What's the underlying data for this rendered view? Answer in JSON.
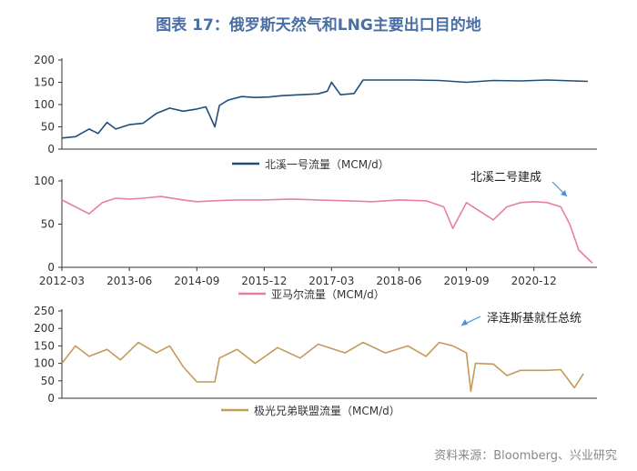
{
  "title": "图表 17：俄罗斯天然气和LNG主要出口目的地",
  "source": "资料来源：Bloomberg、兴业研究",
  "chart_data": [
    {
      "type": "line",
      "series": [
        {
          "name": "北溪一号流量（MCM/d）",
          "color": "#1f4e79",
          "points": [
            [
              "2012-03-01",
              25
            ],
            [
              "2012-06-01",
              28
            ],
            [
              "2012-09-01",
              45
            ],
            [
              "2012-11-01",
              35
            ],
            [
              "2013-01-01",
              60
            ],
            [
              "2013-03-01",
              45
            ],
            [
              "2013-06-01",
              55
            ],
            [
              "2013-09-01",
              58
            ],
            [
              "2013-12-01",
              80
            ],
            [
              "2014-03-01",
              92
            ],
            [
              "2014-06-01",
              85
            ],
            [
              "2014-09-01",
              90
            ],
            [
              "2014-11-01",
              95
            ],
            [
              "2015-01-01",
              50
            ],
            [
              "2015-02-01",
              98
            ],
            [
              "2015-04-01",
              110
            ],
            [
              "2015-07-01",
              118
            ],
            [
              "2015-10-01",
              116
            ],
            [
              "2016-01-01",
              117
            ],
            [
              "2016-04-01",
              120
            ],
            [
              "2016-08-01",
              122
            ],
            [
              "2016-12-01",
              124
            ],
            [
              "2017-02-01",
              130
            ],
            [
              "2017-03-01",
              150
            ],
            [
              "2017-05-01",
              122
            ],
            [
              "2017-08-01",
              125
            ],
            [
              "2017-10-01",
              155
            ],
            [
              "2018-03-01",
              155
            ],
            [
              "2018-09-01",
              155
            ],
            [
              "2019-03-01",
              154
            ],
            [
              "2019-09-01",
              150
            ],
            [
              "2020-03-01",
              154
            ],
            [
              "2020-09-01",
              153
            ],
            [
              "2021-03-01",
              155
            ],
            [
              "2021-09-01",
              153
            ],
            [
              "2021-12-01",
              152
            ]
          ]
        }
      ],
      "ylim": [
        0,
        200
      ],
      "yticks": [
        0,
        50,
        100,
        150,
        200
      ]
    },
    {
      "type": "line",
      "series": [
        {
          "name": "亚马尔流量（MCM/d）",
          "color": "#e880a0",
          "points": [
            [
              "2012-03-01",
              78
            ],
            [
              "2012-06-01",
              70
            ],
            [
              "2012-09-01",
              62
            ],
            [
              "2012-12-01",
              75
            ],
            [
              "2013-03-01",
              80
            ],
            [
              "2013-06-01",
              79
            ],
            [
              "2013-09-01",
              80
            ],
            [
              "2014-01-01",
              82
            ],
            [
              "2014-06-01",
              78
            ],
            [
              "2014-09-01",
              76
            ],
            [
              "2015-01-01",
              77
            ],
            [
              "2015-06-01",
              78
            ],
            [
              "2015-12-01",
              78
            ],
            [
              "2016-06-01",
              79
            ],
            [
              "2016-12-01",
              78
            ],
            [
              "2017-06-01",
              77
            ],
            [
              "2017-12-01",
              76
            ],
            [
              "2018-06-01",
              78
            ],
            [
              "2018-12-01",
              77
            ],
            [
              "2019-04-01",
              70
            ],
            [
              "2019-06-01",
              45
            ],
            [
              "2019-09-01",
              75
            ],
            [
              "2019-12-01",
              65
            ],
            [
              "2020-03-01",
              55
            ],
            [
              "2020-06-01",
              70
            ],
            [
              "2020-09-01",
              75
            ],
            [
              "2020-12-01",
              76
            ],
            [
              "2021-03-01",
              75
            ],
            [
              "2021-06-01",
              70
            ],
            [
              "2021-08-01",
              50
            ],
            [
              "2021-10-01",
              20
            ],
            [
              "2021-12-01",
              10
            ],
            [
              "2022-01-01",
              5
            ]
          ]
        }
      ],
      "ylim": [
        0,
        100
      ],
      "yticks": [
        0,
        50,
        100
      ],
      "xticks": [
        "2012-03",
        "2013-06",
        "2014-09",
        "2015-12",
        "2017-03",
        "2018-06",
        "2019-09",
        "2020-12"
      ],
      "annotation": "北溪二号建成"
    },
    {
      "type": "line",
      "series": [
        {
          "name": "极光兄弟联盟流量（MCM/d）",
          "color": "#c49a5a",
          "points": [
            [
              "2012-03-01",
              100
            ],
            [
              "2012-06-01",
              150
            ],
            [
              "2012-09-01",
              120
            ],
            [
              "2013-01-01",
              140
            ],
            [
              "2013-04-01",
              110
            ],
            [
              "2013-08-01",
              160
            ],
            [
              "2013-12-01",
              130
            ],
            [
              "2014-03-01",
              150
            ],
            [
              "2014-06-01",
              90
            ],
            [
              "2014-09-01",
              47
            ],
            [
              "2015-01-01",
              47
            ],
            [
              "2015-02-01",
              115
            ],
            [
              "2015-06-01",
              140
            ],
            [
              "2015-10-01",
              100
            ],
            [
              "2016-03-01",
              145
            ],
            [
              "2016-08-01",
              115
            ],
            [
              "2016-12-01",
              155
            ],
            [
              "2017-06-01",
              130
            ],
            [
              "2017-10-01",
              160
            ],
            [
              "2018-03-01",
              130
            ],
            [
              "2018-08-01",
              150
            ],
            [
              "2018-12-01",
              120
            ],
            [
              "2019-03-01",
              160
            ],
            [
              "2019-06-01",
              150
            ],
            [
              "2019-09-01",
              130
            ],
            [
              "2019-10-01",
              20
            ],
            [
              "2019-11-01",
              100
            ],
            [
              "2020-03-01",
              98
            ],
            [
              "2020-06-01",
              65
            ],
            [
              "2020-09-01",
              80
            ],
            [
              "2020-12-01",
              80
            ],
            [
              "2021-03-01",
              80
            ],
            [
              "2021-06-01",
              82
            ],
            [
              "2021-09-01",
              30
            ],
            [
              "2021-11-01",
              70
            ]
          ]
        }
      ],
      "ylim": [
        0,
        250
      ],
      "yticks": [
        0,
        50,
        100,
        150,
        200,
        250
      ],
      "annotation": "泽连斯基就任总统"
    }
  ]
}
